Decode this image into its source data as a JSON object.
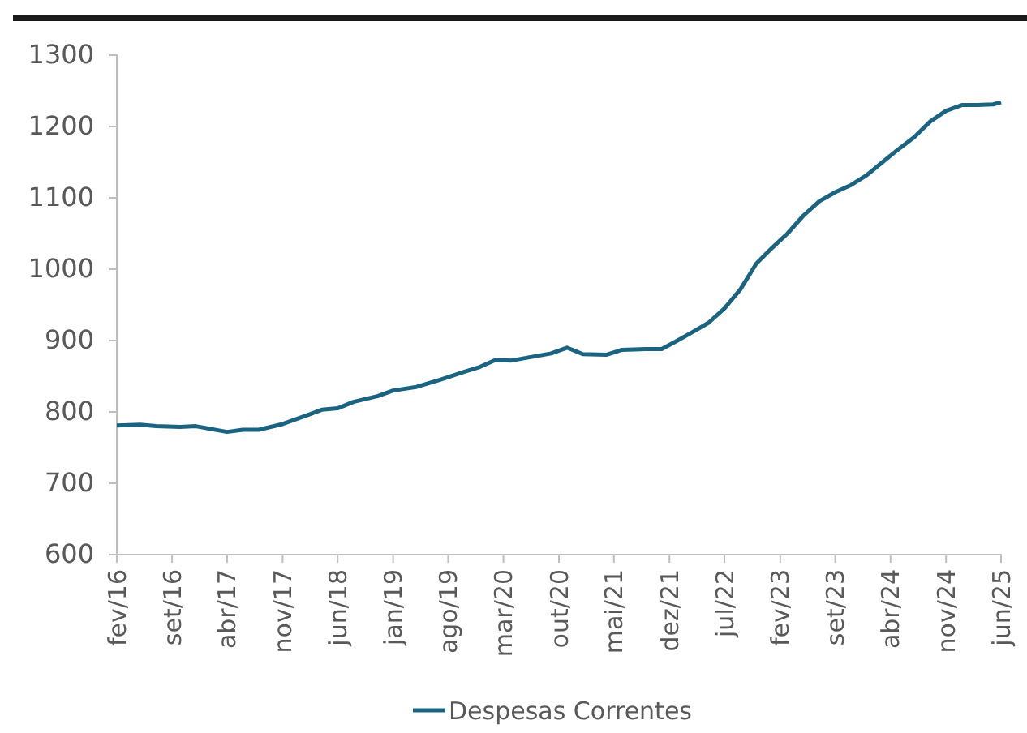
{
  "chart_data": {
    "type": "line",
    "x": [
      "2016-02",
      "2016-05",
      "2016-07",
      "2016-10",
      "2016-12",
      "2017-04",
      "2017-06",
      "2017-08",
      "2017-11",
      "2018-02",
      "2018-04",
      "2018-06",
      "2018-08",
      "2018-11",
      "2019-01",
      "2019-04",
      "2019-07",
      "2019-10",
      "2019-12",
      "2020-02",
      "2020-04",
      "2020-06",
      "2020-09",
      "2020-11",
      "2021-01",
      "2021-04",
      "2021-06",
      "2021-09",
      "2021-11",
      "2022-01",
      "2022-03",
      "2022-05",
      "2022-07",
      "2022-09",
      "2022-11",
      "2023-01",
      "2023-03",
      "2023-05",
      "2023-07",
      "2023-09",
      "2023-11",
      "2024-01",
      "2024-03",
      "2024-05",
      "2024-07",
      "2024-09",
      "2024-11",
      "2025-01",
      "2025-03",
      "2025-05",
      "2025-06"
    ],
    "series": [
      {
        "name": "Despesas Correntes",
        "color": "#1a6482",
        "values": [
          781,
          782,
          780,
          779,
          780,
          772,
          775,
          775,
          783,
          795,
          803,
          805,
          814,
          822,
          830,
          835,
          845,
          856,
          863,
          873,
          872,
          876,
          882,
          890,
          881,
          880,
          887,
          888,
          888,
          900,
          912,
          925,
          945,
          972,
          1008,
          1030,
          1050,
          1075,
          1095,
          1108,
          1118,
          1132,
          1150,
          1168,
          1185,
          1207,
          1222,
          1230,
          1230,
          1231,
          1234
        ]
      }
    ],
    "xlim": [
      "2016-02",
      "2025-06"
    ],
    "xticks": [
      {
        "value": "2016-02",
        "label": "fev/16"
      },
      {
        "value": "2016-09",
        "label": "set/16"
      },
      {
        "value": "2017-04",
        "label": "abr/17"
      },
      {
        "value": "2017-11",
        "label": "nov/17"
      },
      {
        "value": "2018-06",
        "label": "jun/18"
      },
      {
        "value": "2019-01",
        "label": "jan/19"
      },
      {
        "value": "2019-08",
        "label": "ago/19"
      },
      {
        "value": "2020-03",
        "label": "mar/20"
      },
      {
        "value": "2020-10",
        "label": "out/20"
      },
      {
        "value": "2021-05",
        "label": "mai/21"
      },
      {
        "value": "2021-12",
        "label": "dez/21"
      },
      {
        "value": "2022-07",
        "label": "jul/22"
      },
      {
        "value": "2023-02",
        "label": "fev/23"
      },
      {
        "value": "2023-09",
        "label": "set/23"
      },
      {
        "value": "2024-04",
        "label": "abr/24"
      },
      {
        "value": "2024-11",
        "label": "nov/24"
      },
      {
        "value": "2025-06",
        "label": "jun/25"
      }
    ],
    "ylim": [
      600,
      1300
    ],
    "yticks": [
      600,
      700,
      800,
      900,
      1000,
      1100,
      1200,
      1300
    ],
    "legend": "bottom",
    "grid": false,
    "marker": "none",
    "line_style": "solid"
  }
}
